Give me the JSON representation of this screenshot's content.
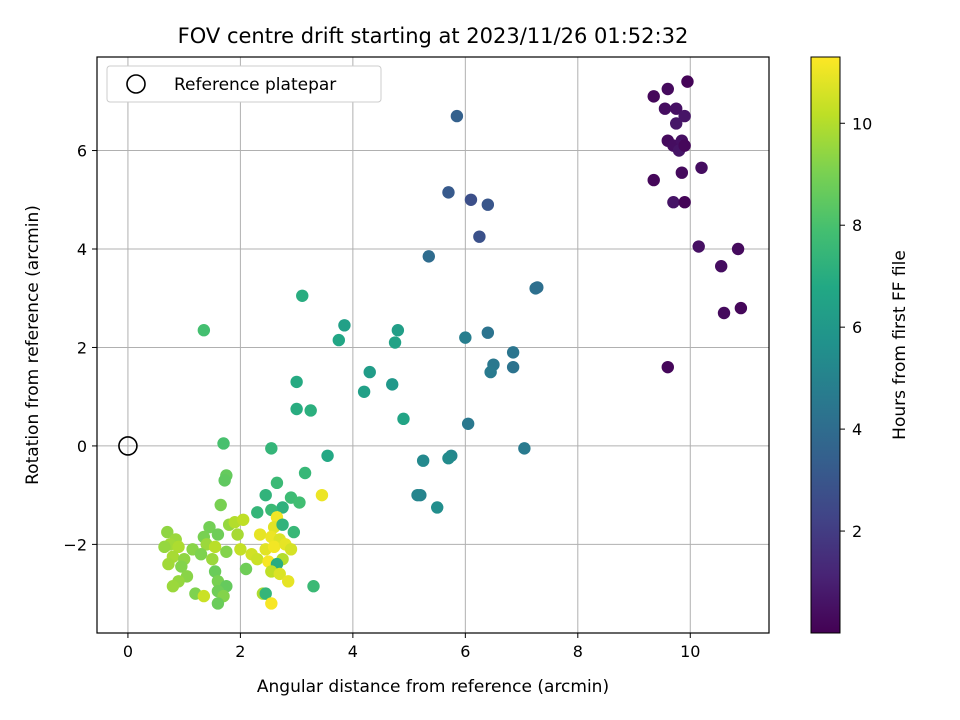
{
  "chart_data": {
    "type": "scatter",
    "title": "FOV centre drift starting at 2023/11/26 01:52:32",
    "xlabel": "Angular distance from reference (arcmin)",
    "ylabel": "Rotation from reference (arcmin)",
    "xlim": [
      -0.55,
      11.4
    ],
    "ylim": [
      -3.8,
      7.9
    ],
    "xticks": [
      0,
      2,
      4,
      6,
      8,
      10
    ],
    "yticks": [
      -2,
      0,
      2,
      4,
      6
    ],
    "xtick_labels": [
      "0",
      "2",
      "4",
      "6",
      "8",
      "10"
    ],
    "ytick_labels": [
      "−2",
      "0",
      "2",
      "4",
      "6"
    ],
    "grid": true,
    "legend": {
      "position": "top-left",
      "entries": [
        "Reference platepar"
      ]
    },
    "reference_point": {
      "x": 0,
      "y": 0,
      "label": "Reference platepar"
    },
    "colorbar": {
      "label": "Hours from first FF file",
      "colormap": "viridis",
      "range": [
        0,
        11.3
      ],
      "ticks": [
        2,
        4,
        6,
        8,
        10
      ],
      "tick_labels": [
        "2",
        "4",
        "6",
        "8",
        "10"
      ]
    },
    "series": [
      {
        "color_value_name": "hours",
        "points": [
          {
            "x": 9.35,
            "y": 7.1,
            "c": 0.2
          },
          {
            "x": 9.6,
            "y": 7.25,
            "c": 0.3
          },
          {
            "x": 9.95,
            "y": 7.4,
            "c": 0.1
          },
          {
            "x": 9.55,
            "y": 6.85,
            "c": 0.4
          },
          {
            "x": 9.75,
            "y": 6.85,
            "c": 0.5
          },
          {
            "x": 9.9,
            "y": 6.7,
            "c": 0.6
          },
          {
            "x": 9.75,
            "y": 6.55,
            "c": 0.7
          },
          {
            "x": 9.6,
            "y": 6.2,
            "c": 0.3
          },
          {
            "x": 9.7,
            "y": 6.1,
            "c": 0.4
          },
          {
            "x": 9.85,
            "y": 6.2,
            "c": 0.5
          },
          {
            "x": 9.8,
            "y": 6.0,
            "c": 0.6
          },
          {
            "x": 9.9,
            "y": 6.1,
            "c": 0.2
          },
          {
            "x": 10.2,
            "y": 5.65,
            "c": 0.4
          },
          {
            "x": 9.85,
            "y": 5.55,
            "c": 0.3
          },
          {
            "x": 9.35,
            "y": 5.4,
            "c": 0.2
          },
          {
            "x": 9.7,
            "y": 4.95,
            "c": 0.6
          },
          {
            "x": 9.9,
            "y": 4.95,
            "c": 0.1
          },
          {
            "x": 10.15,
            "y": 4.05,
            "c": 0.5
          },
          {
            "x": 10.85,
            "y": 4.0,
            "c": 0.3
          },
          {
            "x": 10.55,
            "y": 3.65,
            "c": 0.4
          },
          {
            "x": 10.9,
            "y": 2.8,
            "c": 0.2
          },
          {
            "x": 10.6,
            "y": 2.7,
            "c": 0.3
          },
          {
            "x": 9.6,
            "y": 1.6,
            "c": 0.2
          },
          {
            "x": 5.85,
            "y": 6.7,
            "c": 3.5
          },
          {
            "x": 5.7,
            "y": 5.15,
            "c": 3.2
          },
          {
            "x": 6.1,
            "y": 5.0,
            "c": 2.7
          },
          {
            "x": 6.4,
            "y": 4.9,
            "c": 3.0
          },
          {
            "x": 6.25,
            "y": 4.25,
            "c": 2.8
          },
          {
            "x": 5.35,
            "y": 3.85,
            "c": 4.0
          },
          {
            "x": 7.25,
            "y": 3.2,
            "c": 4.2
          },
          {
            "x": 7.28,
            "y": 3.22,
            "c": 4.1
          },
          {
            "x": 6.4,
            "y": 2.3,
            "c": 4.3
          },
          {
            "x": 6.0,
            "y": 2.2,
            "c": 4.8
          },
          {
            "x": 6.85,
            "y": 1.9,
            "c": 4.4
          },
          {
            "x": 6.5,
            "y": 1.65,
            "c": 4.5
          },
          {
            "x": 6.85,
            "y": 1.6,
            "c": 4.3
          },
          {
            "x": 6.45,
            "y": 1.5,
            "c": 4.6
          },
          {
            "x": 6.05,
            "y": 0.45,
            "c": 4.5
          },
          {
            "x": 7.05,
            "y": -0.05,
            "c": 4.6
          },
          {
            "x": 5.75,
            "y": -0.2,
            "c": 5.2
          },
          {
            "x": 5.7,
            "y": -0.25,
            "c": 5.4
          },
          {
            "x": 5.25,
            "y": -0.3,
            "c": 5.3
          },
          {
            "x": 5.2,
            "y": -1.0,
            "c": 5.0
          },
          {
            "x": 5.15,
            "y": -1.0,
            "c": 5.1
          },
          {
            "x": 5.5,
            "y": -1.25,
            "c": 5.5
          },
          {
            "x": 3.1,
            "y": 3.05,
            "c": 7.0
          },
          {
            "x": 3.85,
            "y": 2.45,
            "c": 6.4
          },
          {
            "x": 3.75,
            "y": 2.15,
            "c": 6.7
          },
          {
            "x": 4.8,
            "y": 2.35,
            "c": 6.3
          },
          {
            "x": 4.75,
            "y": 2.1,
            "c": 6.5
          },
          {
            "x": 4.3,
            "y": 1.5,
            "c": 6.2
          },
          {
            "x": 4.7,
            "y": 1.25,
            "c": 6.0
          },
          {
            "x": 4.2,
            "y": 1.1,
            "c": 6.4
          },
          {
            "x": 3.0,
            "y": 1.3,
            "c": 6.9
          },
          {
            "x": 3.0,
            "y": 0.75,
            "c": 7.0
          },
          {
            "x": 3.25,
            "y": 0.72,
            "c": 7.1
          },
          {
            "x": 4.9,
            "y": 0.55,
            "c": 6.6
          },
          {
            "x": 3.55,
            "y": -0.2,
            "c": 6.8
          },
          {
            "x": 1.35,
            "y": 2.35,
            "c": 7.9
          },
          {
            "x": 1.7,
            "y": 0.05,
            "c": 8.0
          },
          {
            "x": 2.55,
            "y": -0.05,
            "c": 7.4
          },
          {
            "x": 3.15,
            "y": -0.55,
            "c": 7.5
          },
          {
            "x": 1.75,
            "y": -0.6,
            "c": 8.6
          },
          {
            "x": 1.72,
            "y": -0.7,
            "c": 8.5
          },
          {
            "x": 2.65,
            "y": -0.75,
            "c": 7.6
          },
          {
            "x": 3.45,
            "y": -1.0,
            "c": 11.0
          },
          {
            "x": 2.45,
            "y": -1.0,
            "c": 7.3
          },
          {
            "x": 2.9,
            "y": -1.05,
            "c": 7.7
          },
          {
            "x": 3.05,
            "y": -1.15,
            "c": 7.8
          },
          {
            "x": 2.75,
            "y": -1.25,
            "c": 7.2
          },
          {
            "x": 1.65,
            "y": -1.2,
            "c": 9.0
          },
          {
            "x": 2.55,
            "y": -1.3,
            "c": 7.6
          },
          {
            "x": 2.3,
            "y": -1.35,
            "c": 7.4
          },
          {
            "x": 2.65,
            "y": -1.45,
            "c": 11.1
          },
          {
            "x": 1.45,
            "y": -1.65,
            "c": 8.9
          },
          {
            "x": 1.8,
            "y": -1.6,
            "c": 9.5
          },
          {
            "x": 1.9,
            "y": -1.55,
            "c": 10.0
          },
          {
            "x": 2.05,
            "y": -1.5,
            "c": 10.2
          },
          {
            "x": 2.6,
            "y": -1.65,
            "c": 10.8
          },
          {
            "x": 2.75,
            "y": -1.6,
            "c": 7.3
          },
          {
            "x": 2.95,
            "y": -1.75,
            "c": 7.5
          },
          {
            "x": 0.7,
            "y": -1.75,
            "c": 9.4
          },
          {
            "x": 0.85,
            "y": -1.9,
            "c": 9.6
          },
          {
            "x": 1.35,
            "y": -1.85,
            "c": 9.0
          },
          {
            "x": 1.6,
            "y": -1.8,
            "c": 8.8
          },
          {
            "x": 1.95,
            "y": -1.8,
            "c": 9.8
          },
          {
            "x": 2.35,
            "y": -1.8,
            "c": 10.9
          },
          {
            "x": 2.55,
            "y": -1.85,
            "c": 11.0
          },
          {
            "x": 2.7,
            "y": -1.9,
            "c": 10.7
          },
          {
            "x": 0.75,
            "y": -2.0,
            "c": 9.7
          },
          {
            "x": 0.9,
            "y": -2.05,
            "c": 9.9
          },
          {
            "x": 1.15,
            "y": -2.1,
            "c": 9.3
          },
          {
            "x": 1.4,
            "y": -2.0,
            "c": 9.6
          },
          {
            "x": 1.55,
            "y": -2.05,
            "c": 10.1
          },
          {
            "x": 1.75,
            "y": -2.15,
            "c": 9.2
          },
          {
            "x": 2.0,
            "y": -2.1,
            "c": 10.3
          },
          {
            "x": 2.2,
            "y": -2.2,
            "c": 10.5
          },
          {
            "x": 2.45,
            "y": -2.1,
            "c": 10.8
          },
          {
            "x": 2.6,
            "y": -2.05,
            "c": 11.1
          },
          {
            "x": 2.8,
            "y": -2.0,
            "c": 10.9
          },
          {
            "x": 2.9,
            "y": -2.1,
            "c": 10.6
          },
          {
            "x": 0.65,
            "y": -2.05,
            "c": 9.5
          },
          {
            "x": 0.8,
            "y": -2.25,
            "c": 9.8
          },
          {
            "x": 1.0,
            "y": -2.3,
            "c": 9.4
          },
          {
            "x": 1.3,
            "y": -2.2,
            "c": 9.1
          },
          {
            "x": 1.5,
            "y": -2.3,
            "c": 9.6
          },
          {
            "x": 2.3,
            "y": -2.3,
            "c": 10.4
          },
          {
            "x": 2.5,
            "y": -2.35,
            "c": 11.2
          },
          {
            "x": 2.75,
            "y": -2.3,
            "c": 10.0
          },
          {
            "x": 2.65,
            "y": -2.4,
            "c": 7.0
          },
          {
            "x": 0.72,
            "y": -2.4,
            "c": 9.7
          },
          {
            "x": 0.95,
            "y": -2.45,
            "c": 9.2
          },
          {
            "x": 2.1,
            "y": -2.5,
            "c": 8.8
          },
          {
            "x": 1.55,
            "y": -2.55,
            "c": 8.7
          },
          {
            "x": 2.55,
            "y": -2.55,
            "c": 10.2
          },
          {
            "x": 2.7,
            "y": -2.6,
            "c": 10.7
          },
          {
            "x": 1.05,
            "y": -2.65,
            "c": 9.3
          },
          {
            "x": 0.9,
            "y": -2.75,
            "c": 9.5
          },
          {
            "x": 1.6,
            "y": -2.75,
            "c": 9.0
          },
          {
            "x": 2.85,
            "y": -2.75,
            "c": 10.9
          },
          {
            "x": 0.8,
            "y": -2.85,
            "c": 9.6
          },
          {
            "x": 1.75,
            "y": -2.85,
            "c": 8.6
          },
          {
            "x": 3.3,
            "y": -2.85,
            "c": 7.6
          },
          {
            "x": 1.6,
            "y": -2.95,
            "c": 8.8
          },
          {
            "x": 1.2,
            "y": -3.0,
            "c": 9.1
          },
          {
            "x": 1.35,
            "y": -3.05,
            "c": 10.4
          },
          {
            "x": 1.7,
            "y": -3.05,
            "c": 9.2
          },
          {
            "x": 2.4,
            "y": -3.0,
            "c": 9.9
          },
          {
            "x": 2.45,
            "y": -3.0,
            "c": 7.4
          },
          {
            "x": 1.6,
            "y": -3.2,
            "c": 8.7
          },
          {
            "x": 2.55,
            "y": -3.2,
            "c": 11.2
          }
        ]
      }
    ]
  }
}
